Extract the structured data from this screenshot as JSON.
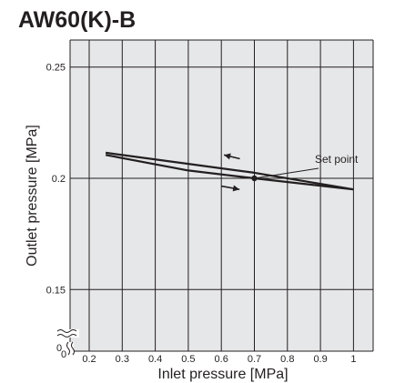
{
  "chart_data": {
    "type": "line",
    "title": "AW60(K)-B",
    "xlabel": "Inlet pressure [MPa]",
    "ylabel": "Outlet pressure [MPa]",
    "xlim": [
      0.15,
      1.0
    ],
    "ylim": [
      0.125,
      0.26
    ],
    "x_ticks": [
      "0.2",
      "0.3",
      "0.4",
      "0.5",
      "0.6",
      "0.7",
      "0.8",
      "0.9",
      "1"
    ],
    "x_tick_values": [
      0.2,
      0.3,
      0.4,
      0.5,
      0.6,
      0.7,
      0.8,
      0.9,
      1.0
    ],
    "y_ticks": [
      "0.15",
      "0.2",
      "0.25"
    ],
    "y_tick_values": [
      0.15,
      0.2,
      0.25
    ],
    "x_origin_label": "0",
    "y_origin_label": "0",
    "axis_break": true,
    "grid": true,
    "background_color": "#e6e7e8",
    "line_color": "#231f20",
    "series": [
      {
        "x": [
          0.25,
          0.5,
          0.7,
          1.0
        ],
        "y": [
          0.2115,
          0.2065,
          0.2025,
          0.195
        ]
      },
      {
        "x": [
          0.25,
          0.5,
          0.7,
          1.0
        ],
        "y": [
          0.2105,
          0.2035,
          0.2,
          0.195
        ]
      }
    ],
    "set_point": {
      "x": 0.7,
      "y": 0.2,
      "label": "Set point"
    },
    "arrows": [
      {
        "from": [
          0.656,
          0.2088
        ],
        "to": [
          0.608,
          0.2105
        ],
        "direction": "left"
      },
      {
        "from": [
          0.6,
          0.1965
        ],
        "to": [
          0.655,
          0.195
        ],
        "direction": "right"
      }
    ]
  }
}
